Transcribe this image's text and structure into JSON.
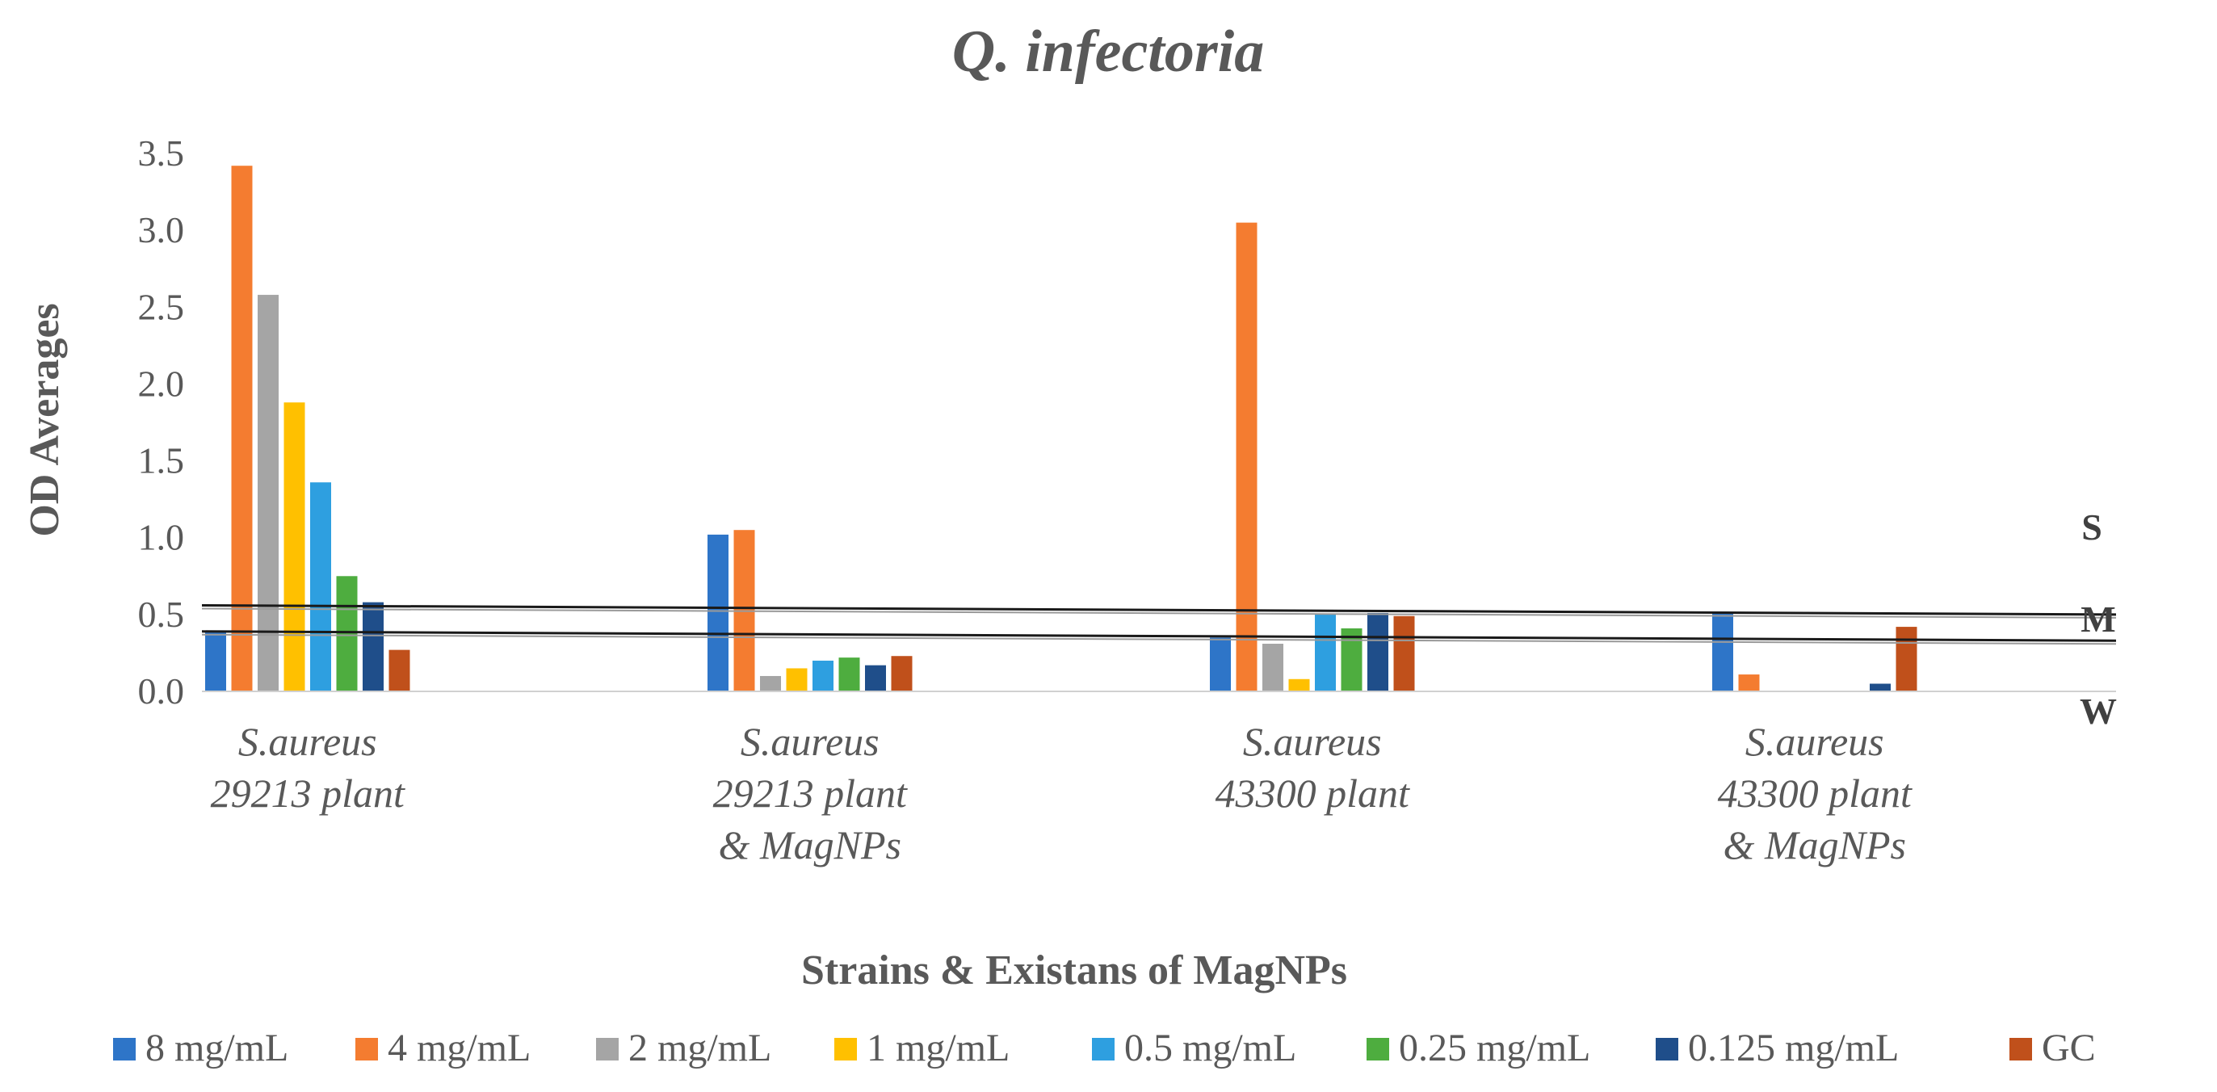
{
  "chart_data": {
    "type": "bar",
    "title": "Q. infectoria",
    "xlabel": "Strains & Existans of MagNPs",
    "ylabel": "OD Averages",
    "ylim": [
      0,
      3.5
    ],
    "yticks": [
      "0.0",
      "0.5",
      "1.0",
      "1.5",
      "2.0",
      "2.5",
      "3.0",
      "3.5"
    ],
    "categories": [
      [
        "S.aureus",
        "29213 plant"
      ],
      [
        "S.aureus",
        "29213 plant",
        "& MagNPs"
      ],
      [
        "S.aureus",
        "43300 plant"
      ],
      [
        "S.aureus",
        "43300 plant",
        "& MagNPs"
      ]
    ],
    "series": [
      {
        "name": "8 mg/mL",
        "color": "#2E75C8",
        "values": [
          0.39,
          1.02,
          0.35,
          0.51
        ]
      },
      {
        "name": "4 mg/mL",
        "color": "#F47C30",
        "values": [
          3.42,
          1.05,
          3.05,
          0.11
        ]
      },
      {
        "name": "2 mg/mL",
        "color": "#A5A5A5",
        "values": [
          2.58,
          0.1,
          0.31,
          0
        ]
      },
      {
        "name": "1 mg/mL",
        "color": "#FFC000",
        "values": [
          1.88,
          0.15,
          0.08,
          0
        ]
      },
      {
        "name": "0.5 mg/mL",
        "color": "#2E9FE0",
        "values": [
          1.36,
          0.2,
          0.5,
          0
        ]
      },
      {
        "name": "0.25 mg/mL",
        "color": "#4EAD3F",
        "values": [
          0.75,
          0.22,
          0.41,
          0
        ]
      },
      {
        "name": "0.125 mg/mL",
        "color": "#1F4E8A",
        "values": [
          0.58,
          0.17,
          0.51,
          0.05
        ]
      },
      {
        "name": "GC",
        "color": "#C0501B",
        "values": [
          0.27,
          0.23,
          0.49,
          0.42
        ]
      }
    ],
    "threshold_lines": [
      {
        "name": "upper cutoff",
        "start": 0.56,
        "end": 0.5
      },
      {
        "name": "lower cutoff",
        "start": 0.39,
        "end": 0.33
      }
    ],
    "level_labels": [
      "S",
      "M",
      "W"
    ],
    "legend_position": "bottom"
  }
}
